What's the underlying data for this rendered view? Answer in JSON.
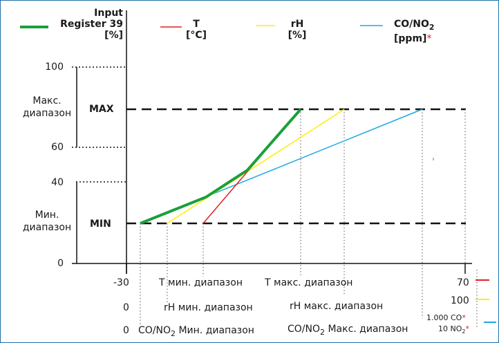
{
  "legend": {
    "input_title": [
      "Input",
      "Register 39",
      "[%]"
    ],
    "t": [
      "T",
      "[°C]"
    ],
    "rh": [
      "rH",
      "[%]"
    ],
    "co_no2": [
      "CO/NO",
      "2",
      "[ppm]",
      "*"
    ]
  },
  "yaxis": {
    "tick_100": "100",
    "tick_60": "60",
    "tick_40": "40",
    "tick_0": "0",
    "max_range": [
      "Макс.",
      "диапазон"
    ],
    "min_range": [
      "Мин.",
      "диапазон"
    ],
    "max_label": "MAX",
    "min_label": "MIN"
  },
  "xaxis": {
    "row1": {
      "left": "-30",
      "min": "T мин. диапазон",
      "max": "T макс. диапазон",
      "right": "70"
    },
    "row2": {
      "left": "0",
      "min": "rH мин. диапазон",
      "max": "rH макс. диапазон",
      "right": "100"
    },
    "row3": {
      "left": "0",
      "min": [
        "CO/NO",
        "2",
        " Мин. диапазон"
      ],
      "max": [
        "CO/NO",
        "2",
        " Макс. диапазон"
      ],
      "right_co": [
        "1.000 CO",
        "*"
      ],
      "right_no2": [
        "10 NO",
        "2",
        "*"
      ]
    }
  },
  "colors": {
    "input": "#1aa03a",
    "t": "#e31e24",
    "rh": "#ffed00",
    "co_no2": "#1ba9e1",
    "frame": "#1f6fa8",
    "asterisk": "#e31e24"
  }
}
